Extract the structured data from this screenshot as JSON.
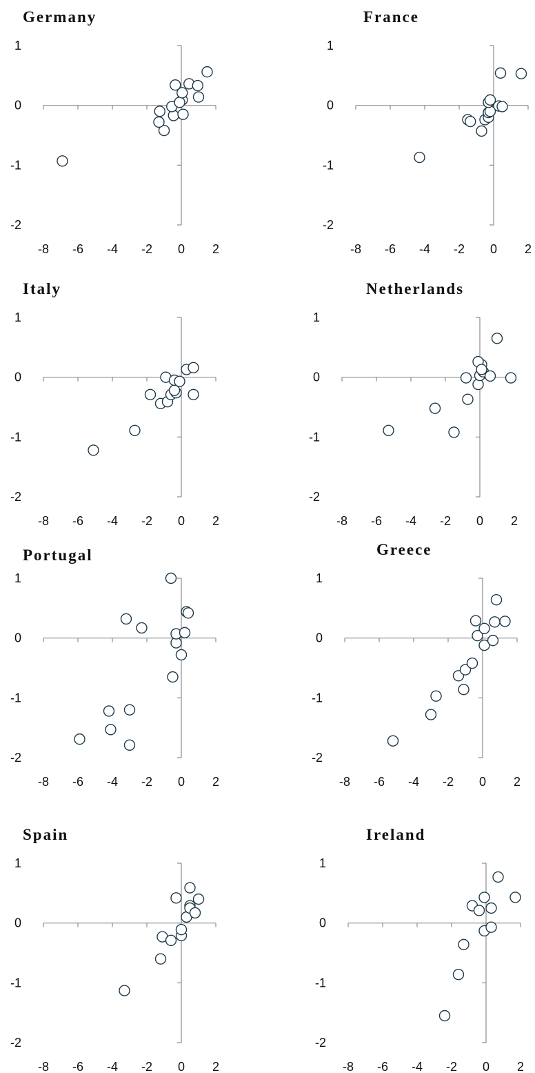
{
  "chart_data": [
    {
      "type": "scatter",
      "title": "Germany",
      "xlim": [
        -8,
        2
      ],
      "ylim": [
        -2,
        1
      ],
      "xticks": [
        "-8",
        "-6",
        "-4",
        "-2",
        "0",
        "2"
      ],
      "yticks": [
        "1",
        "0",
        "-1",
        "-2"
      ],
      "grid": false,
      "points": [
        [
          -6.9,
          -0.93
        ],
        [
          -1.0,
          -0.42
        ],
        [
          -1.3,
          -0.28
        ],
        [
          -1.25,
          -0.1
        ],
        [
          -0.45,
          -0.17
        ],
        [
          -0.55,
          -0.02
        ],
        [
          0.1,
          -0.15
        ],
        [
          0.05,
          0.09
        ],
        [
          -0.1,
          0.05
        ],
        [
          0.05,
          0.21
        ],
        [
          -0.35,
          0.34
        ],
        [
          0.45,
          0.36
        ],
        [
          0.95,
          0.33
        ],
        [
          1.5,
          0.56
        ],
        [
          1.0,
          0.14
        ]
      ]
    },
    {
      "type": "scatter",
      "title": "France",
      "xlim": [
        -8,
        2
      ],
      "ylim": [
        -2,
        1
      ],
      "xticks": [
        "-8",
        "-6",
        "-4",
        "-2",
        "0",
        "2"
      ],
      "yticks": [
        "1",
        "0",
        "-1",
        "-2"
      ],
      "grid": false,
      "points": [
        [
          -4.3,
          -0.87
        ],
        [
          -0.7,
          -0.43
        ],
        [
          -1.5,
          -0.24
        ],
        [
          -1.35,
          -0.27
        ],
        [
          -0.5,
          -0.24
        ],
        [
          -0.3,
          -0.2
        ],
        [
          -0.3,
          -0.12
        ],
        [
          -0.2,
          -0.1
        ],
        [
          -0.3,
          0.05
        ],
        [
          -0.2,
          0.09
        ],
        [
          0.3,
          -0.01
        ],
        [
          0.5,
          -0.02
        ],
        [
          0.4,
          0.54
        ],
        [
          1.6,
          0.53
        ]
      ]
    },
    {
      "type": "scatter",
      "title": "Italy",
      "xlim": [
        -8,
        2
      ],
      "ylim": [
        -2,
        1
      ],
      "xticks": [
        "-8",
        "-6",
        "-4",
        "-2",
        "0",
        "2"
      ],
      "yticks": [
        "1",
        "0",
        "-1",
        "-2"
      ],
      "grid": false,
      "points": [
        [
          -5.1,
          -1.22
        ],
        [
          -2.7,
          -0.89
        ],
        [
          -1.8,
          -0.29
        ],
        [
          -1.2,
          -0.44
        ],
        [
          -0.8,
          -0.41
        ],
        [
          -0.6,
          -0.29
        ],
        [
          -0.3,
          -0.26
        ],
        [
          -0.4,
          -0.22
        ],
        [
          -0.9,
          0.0
        ],
        [
          -0.4,
          -0.05
        ],
        [
          -0.1,
          -0.07
        ],
        [
          0.7,
          -0.29
        ],
        [
          0.3,
          0.13
        ],
        [
          0.7,
          0.16
        ]
      ]
    },
    {
      "type": "scatter",
      "title": "Netherlands",
      "xlim": [
        -8,
        2
      ],
      "ylim": [
        -2,
        1
      ],
      "xticks": [
        "-8",
        "-6",
        "-4",
        "-2",
        "0",
        "2"
      ],
      "yticks": [
        "1",
        "0",
        "-1",
        "-2"
      ],
      "grid": false,
      "points": [
        [
          -5.3,
          -0.89
        ],
        [
          -2.6,
          -0.52
        ],
        [
          -1.5,
          -0.92
        ],
        [
          -0.7,
          -0.37
        ],
        [
          -0.8,
          -0.01
        ],
        [
          -0.1,
          -0.12
        ],
        [
          0.0,
          0.03
        ],
        [
          0.1,
          0.21
        ],
        [
          -0.1,
          0.26
        ],
        [
          0.2,
          0.09
        ],
        [
          0.1,
          0.13
        ],
        [
          0.6,
          0.02
        ],
        [
          1.0,
          0.65
        ],
        [
          1.8,
          -0.01
        ]
      ]
    },
    {
      "type": "scatter",
      "title": "Portugal",
      "xlim": [
        -8,
        2
      ],
      "ylim": [
        -2,
        1
      ],
      "xticks": [
        "-8",
        "-6",
        "-4",
        "-2",
        "0",
        "2"
      ],
      "yticks": [
        "1",
        "0",
        "-1",
        "-2"
      ],
      "grid": false,
      "points": [
        [
          -5.9,
          -1.69
        ],
        [
          -4.2,
          -1.22
        ],
        [
          -4.1,
          -1.53
        ],
        [
          -3.0,
          -1.2
        ],
        [
          -3.0,
          -1.79
        ],
        [
          -3.2,
          0.32
        ],
        [
          -2.3,
          0.17
        ],
        [
          -0.6,
          1.0
        ],
        [
          -0.5,
          -0.65
        ],
        [
          -0.3,
          -0.08
        ],
        [
          -0.3,
          0.07
        ],
        [
          0.0,
          -0.28
        ],
        [
          0.2,
          0.09
        ],
        [
          0.3,
          0.44
        ],
        [
          0.4,
          0.42
        ]
      ]
    },
    {
      "type": "scatter",
      "title": "Greece",
      "xlim": [
        -8,
        2
      ],
      "ylim": [
        -2,
        1
      ],
      "xticks": [
        "-8",
        "-6",
        "-4",
        "-2",
        "0",
        "2"
      ],
      "yticks": [
        "1",
        "0",
        "-1",
        "-2"
      ],
      "grid": false,
      "points": [
        [
          -5.2,
          -1.72
        ],
        [
          -3.0,
          -1.28
        ],
        [
          -2.7,
          -0.97
        ],
        [
          -1.4,
          -0.63
        ],
        [
          -1.1,
          -0.86
        ],
        [
          -1.0,
          -0.53
        ],
        [
          -0.6,
          -0.42
        ],
        [
          -0.4,
          0.29
        ],
        [
          -0.3,
          0.04
        ],
        [
          0.1,
          0.16
        ],
        [
          0.1,
          -0.12
        ],
        [
          0.6,
          -0.04
        ],
        [
          0.7,
          0.27
        ],
        [
          0.8,
          0.64
        ],
        [
          1.3,
          0.28
        ]
      ]
    },
    {
      "type": "scatter",
      "title": "Spain",
      "xlim": [
        -8,
        2
      ],
      "ylim": [
        -2,
        1
      ],
      "xticks": [
        "-8",
        "-6",
        "-4",
        "-2",
        "0",
        "2"
      ],
      "yticks": [
        "1",
        "0",
        "-1",
        "-2"
      ],
      "grid": false,
      "points": [
        [
          -3.3,
          -1.13
        ],
        [
          -1.2,
          -0.6
        ],
        [
          -1.1,
          -0.23
        ],
        [
          -0.6,
          -0.29
        ],
        [
          -0.3,
          0.42
        ],
        [
          0.0,
          -0.21
        ],
        [
          0.0,
          -0.11
        ],
        [
          0.3,
          0.1
        ],
        [
          0.5,
          0.29
        ],
        [
          0.5,
          0.25
        ],
        [
          0.5,
          0.59
        ],
        [
          0.8,
          0.17
        ],
        [
          1.0,
          0.4
        ]
      ]
    },
    {
      "type": "scatter",
      "title": "Ireland",
      "xlim": [
        -8,
        2
      ],
      "ylim": [
        -2,
        1
      ],
      "xticks": [
        "-8",
        "-6",
        "-4",
        "-2",
        "0",
        "2"
      ],
      "yticks": [
        "1",
        "0",
        "-1",
        "-2"
      ],
      "grid": false,
      "points": [
        [
          -2.4,
          -1.55
        ],
        [
          -1.6,
          -0.86
        ],
        [
          -1.3,
          -0.36
        ],
        [
          -0.8,
          0.29
        ],
        [
          -0.4,
          0.21
        ],
        [
          -0.1,
          -0.13
        ],
        [
          -0.1,
          0.43
        ],
        [
          0.3,
          -0.07
        ],
        [
          0.3,
          0.25
        ],
        [
          0.7,
          0.77
        ],
        [
          1.7,
          0.43
        ]
      ]
    }
  ]
}
